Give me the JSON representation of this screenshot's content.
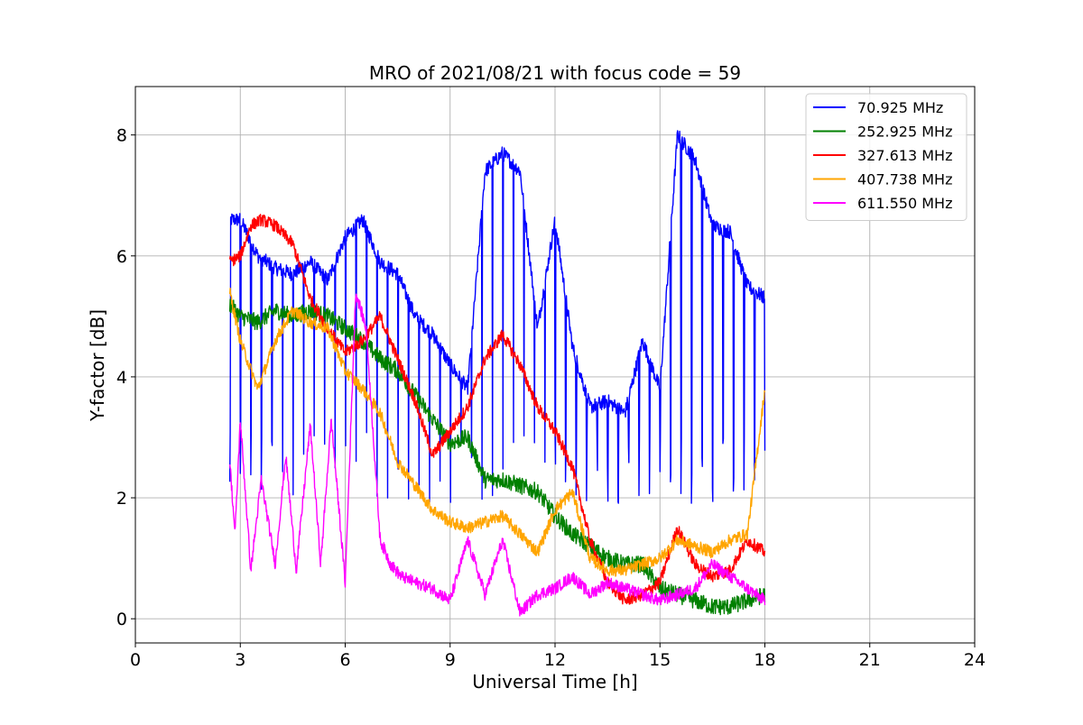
{
  "chart_data": {
    "type": "line",
    "title": "MRO of 2021/08/21 with focus code = 59",
    "xlabel": "Universal Time [h]",
    "ylabel": "Y-factor [dB]",
    "xlim": [
      0,
      24
    ],
    "ylim": [
      -0.4,
      8.8
    ],
    "xticks": [
      0,
      3,
      6,
      9,
      12,
      15,
      18,
      21,
      24
    ],
    "yticks": [
      0,
      2,
      4,
      6,
      8
    ],
    "grid": true,
    "legend_position": "top-right",
    "series": [
      {
        "name": " 70.925 MHz",
        "color": "#0000ff",
        "x": [
          2.7,
          3.0,
          3.5,
          4.0,
          4.5,
          5.0,
          5.5,
          6.0,
          6.5,
          7.0,
          7.5,
          8.0,
          8.5,
          9.0,
          9.5,
          10.0,
          10.5,
          11.0,
          11.5,
          12.0,
          12.5,
          13.0,
          13.5,
          14.0,
          14.5,
          15.0,
          15.5,
          16.0,
          16.5,
          17.0,
          17.5,
          18.0
        ],
        "y": [
          6.6,
          6.6,
          6.0,
          5.8,
          5.7,
          5.9,
          5.6,
          6.3,
          6.6,
          5.9,
          5.7,
          5.0,
          4.7,
          4.2,
          3.8,
          7.4,
          7.7,
          7.4,
          4.8,
          6.6,
          4.5,
          3.5,
          3.6,
          3.4,
          4.6,
          3.8,
          8.0,
          7.6,
          6.5,
          6.4,
          5.5,
          5.3
        ],
        "dip_every_h": 0.3,
        "dip_value": 2.5
      },
      {
        "name": "252.925 MHz",
        "color": "#008000",
        "x": [
          2.7,
          3.0,
          3.5,
          4.0,
          4.5,
          5.0,
          5.5,
          6.0,
          6.5,
          7.0,
          7.5,
          8.0,
          8.5,
          9.0,
          9.5,
          10.0,
          10.5,
          11.0,
          11.5,
          12.0,
          12.5,
          13.0,
          13.5,
          14.0,
          14.5,
          15.0,
          15.5,
          16.0,
          16.5,
          17.0,
          17.5,
          18.0
        ],
        "y": [
          5.2,
          5.0,
          4.9,
          5.1,
          5.0,
          5.1,
          5.0,
          4.8,
          4.6,
          4.3,
          4.1,
          3.7,
          3.3,
          2.9,
          3.0,
          2.3,
          2.3,
          2.2,
          2.1,
          1.7,
          1.4,
          1.2,
          1.0,
          0.9,
          0.9,
          0.5,
          0.4,
          0.3,
          0.2,
          0.2,
          0.3,
          0.4
        ]
      },
      {
        "name": "327.613 MHz",
        "color": "#ff0000",
        "x": [
          2.7,
          3.0,
          3.3,
          3.6,
          4.0,
          4.5,
          5.0,
          5.5,
          6.0,
          6.5,
          7.0,
          7.5,
          8.0,
          8.5,
          9.0,
          9.5,
          10.0,
          10.5,
          11.0,
          11.5,
          12.0,
          12.5,
          13.0,
          13.5,
          14.0,
          14.5,
          15.0,
          15.5,
          16.0,
          16.5,
          17.0,
          17.5,
          18.0
        ],
        "y": [
          5.9,
          6.0,
          6.5,
          6.6,
          6.5,
          6.2,
          5.3,
          4.8,
          4.4,
          4.6,
          5.0,
          4.3,
          3.6,
          2.7,
          3.1,
          3.5,
          4.3,
          4.7,
          4.2,
          3.5,
          3.1,
          2.5,
          1.3,
          0.6,
          0.3,
          0.4,
          0.6,
          1.5,
          0.9,
          0.7,
          0.8,
          1.3,
          1.1
        ]
      },
      {
        "name": "407.738 MHz",
        "color": "#ffa500",
        "x": [
          2.7,
          3.0,
          3.5,
          4.0,
          4.5,
          5.0,
          5.5,
          6.0,
          6.5,
          7.0,
          7.5,
          8.0,
          8.5,
          9.0,
          9.5,
          10.0,
          10.5,
          11.0,
          11.5,
          12.0,
          12.5,
          13.0,
          13.5,
          14.0,
          14.5,
          15.0,
          15.5,
          16.0,
          16.5,
          17.0,
          17.5,
          18.0
        ],
        "y": [
          5.4,
          4.6,
          3.8,
          4.6,
          5.1,
          4.9,
          4.8,
          4.1,
          3.8,
          3.4,
          2.6,
          2.2,
          1.8,
          1.6,
          1.5,
          1.6,
          1.7,
          1.4,
          1.1,
          1.8,
          2.1,
          1.0,
          0.8,
          0.8,
          0.9,
          1.0,
          1.3,
          1.2,
          1.1,
          1.3,
          1.4,
          3.8
        ]
      },
      {
        "name": "611.550 MHz",
        "color": "#ff00ff",
        "x": [
          2.7,
          2.85,
          3.0,
          3.3,
          3.6,
          4.0,
          4.3,
          4.6,
          5.0,
          5.3,
          5.6,
          6.0,
          6.3,
          6.6,
          7.0,
          7.3,
          7.6,
          8.0,
          8.5,
          9.0,
          9.5,
          10.0,
          10.5,
          11.0,
          11.5,
          12.0,
          12.5,
          13.0,
          13.5,
          14.0,
          14.5,
          15.0,
          15.5,
          16.0,
          16.5,
          17.0,
          17.5,
          18.0
        ],
        "y": [
          2.6,
          1.4,
          3.3,
          0.8,
          2.3,
          0.9,
          2.7,
          0.8,
          3.2,
          0.9,
          3.3,
          0.6,
          5.4,
          4.8,
          1.3,
          0.9,
          0.7,
          0.6,
          0.5,
          0.3,
          1.3,
          0.4,
          1.3,
          0.1,
          0.4,
          0.5,
          0.7,
          0.4,
          0.6,
          0.5,
          0.4,
          0.3,
          0.4,
          0.5,
          0.9,
          0.7,
          0.5,
          0.3
        ]
      }
    ]
  }
}
